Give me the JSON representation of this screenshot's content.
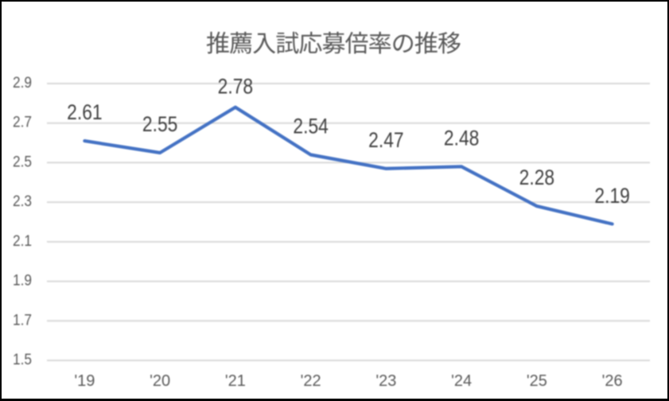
{
  "chart_data": {
    "type": "line",
    "title": "推薦入試応募倍率の推移",
    "categories": [
      "'19",
      "'20",
      "'21",
      "'22",
      "'23",
      "'24",
      "'25",
      "'26"
    ],
    "series": [
      {
        "name": "応募倍率",
        "values": [
          2.61,
          2.55,
          2.78,
          2.54,
          2.47,
          2.48,
          2.28,
          2.19
        ],
        "data_labels": [
          "2.61",
          "2.55",
          "2.78",
          "2.54",
          "2.47",
          "2.48",
          "2.28",
          "2.19"
        ]
      }
    ],
    "xlabel": "",
    "ylabel": "",
    "y_tick_labels": [
      "1.5",
      "1.7",
      "1.9",
      "2.1",
      "2.3",
      "2.5",
      "2.7",
      "2.9"
    ],
    "ylim": [
      1.5,
      2.9
    ],
    "y_step": 0.2,
    "grid": true,
    "legend": "none",
    "colors": {
      "line": "#4472C4",
      "gridline": "#D9D9D9",
      "title": "#595959",
      "axis_labels": "#595959",
      "data_labels": "#404040",
      "background": "#FFFFFF",
      "border": "#000000"
    },
    "layout_hints": {
      "data_label_position": "above",
      "data_label_dy": [
        27,
        27,
        17.5,
        27,
        27,
        27,
        27,
        26.5
      ]
    }
  }
}
